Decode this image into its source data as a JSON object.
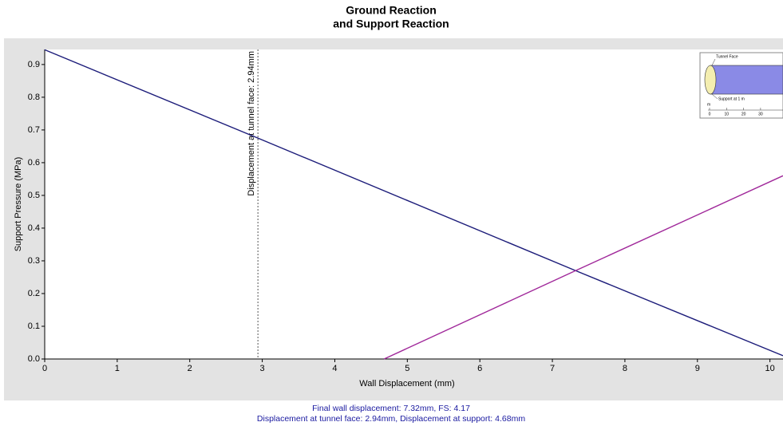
{
  "chart_data": {
    "type": "line",
    "title": [
      "Ground Reaction",
      "and Support Reaction"
    ],
    "xlabel": "Wall Displacement (mm)",
    "ylabel": "Support Pressure (MPa)",
    "xlim": [
      0,
      10.18
    ],
    "ylim": [
      0,
      0.946
    ],
    "xticks": [
      0,
      1,
      2,
      3,
      4,
      5,
      6,
      7,
      8,
      9,
      10
    ],
    "yticks": [
      {
        "value": 0,
        "label": "0.0"
      },
      0.1,
      0.2,
      0.3,
      0.4,
      0.5,
      0.6,
      0.7,
      0.8,
      0.9
    ],
    "series": [
      {
        "color": "#1c1c7a",
        "x": [
          0,
          2.94,
          7.32,
          10.18
        ],
        "values": [
          0.945,
          0.675,
          0.27,
          0.01
        ]
      },
      {
        "color": "#a0289a",
        "x": [
          4.68,
          7.32,
          10.18
        ],
        "values": [
          0,
          0.27,
          0.56
        ]
      }
    ],
    "annotations": [
      {
        "x": 2.94,
        "text": "Displacement at tunnel face: 2.94mm"
      }
    ],
    "inset": {
      "face_label": "Tunnel Face",
      "support_label": "Support at 1 m",
      "scale_unit": "m",
      "scale_ticks": [
        0,
        10,
        20,
        30
      ]
    },
    "summary": [
      "Final wall displacement: 7.32mm, FS: 4.17",
      "Displacement at tunnel face: 2.94mm, Displacement at support: 4.68mm"
    ]
  }
}
